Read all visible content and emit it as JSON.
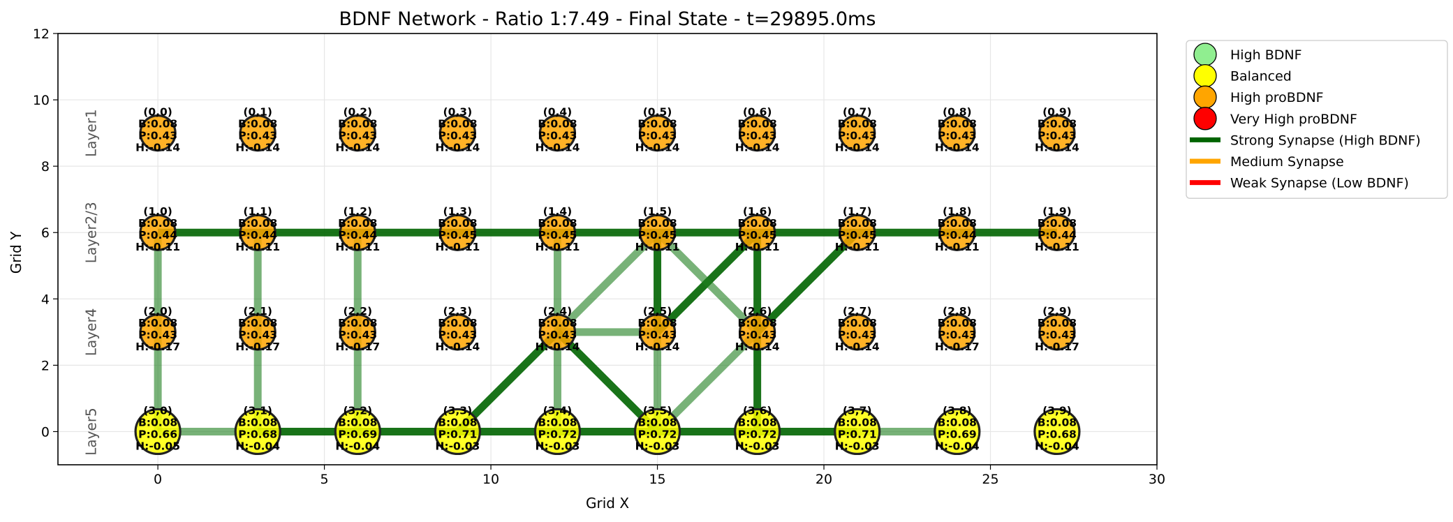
{
  "chart_data": {
    "type": "scatter",
    "title": "BDNF Network - Ratio 1:7.49 - Final State - t=29895.0ms",
    "xlabel": "Grid X",
    "ylabel": "Grid Y",
    "xlim": [
      -3,
      30
    ],
    "ylim": [
      -1,
      12
    ],
    "xticks": [
      0,
      5,
      10,
      15,
      20,
      25,
      30
    ],
    "yticks": [
      0,
      2,
      4,
      6,
      8,
      10,
      12
    ],
    "grid": true,
    "legend_position": "outside-right-top",
    "colors": {
      "high_bdnf": "#90ee90",
      "balanced": "#ffff00",
      "high_probdnf": "#ffa500",
      "very_high_probdnf": "#ff0000",
      "strong_synapse": "#006400",
      "medium_synapse": "#ffa500",
      "weak_synapse": "#ff0000"
    },
    "legend": [
      {
        "label": "High BDNF",
        "kind": "marker",
        "color": "#90ee90"
      },
      {
        "label": "Balanced",
        "kind": "marker",
        "color": "#ffff00"
      },
      {
        "label": "High proBDNF",
        "kind": "marker",
        "color": "#ffa500"
      },
      {
        "label": "Very High proBDNF",
        "kind": "marker",
        "color": "#ff0000"
      },
      {
        "label": "Strong Synapse (High BDNF)",
        "kind": "line",
        "color": "#006400"
      },
      {
        "label": "Medium Synapse",
        "kind": "line",
        "color": "#ffa500"
      },
      {
        "label": "Weak Synapse (Low BDNF)",
        "kind": "line",
        "color": "#ff0000"
      }
    ],
    "layers": [
      {
        "label": "Layer1",
        "y": 9
      },
      {
        "label": "Layer2/3",
        "y": 6
      },
      {
        "label": "Layer4",
        "y": 3
      },
      {
        "label": "Layer5",
        "y": 0
      }
    ],
    "columns_x": [
      0,
      3,
      6,
      9,
      12,
      15,
      18,
      21,
      24,
      27
    ],
    "neurons": [
      {
        "id": "(0,0)",
        "x": 0,
        "y": 9,
        "state": "high_probdnf",
        "size": "small",
        "B": "B:0.08",
        "P": "P:0.43",
        "H": "H:-0.14"
      },
      {
        "id": "(0,1)",
        "x": 3,
        "y": 9,
        "state": "high_probdnf",
        "size": "small",
        "B": "B:0.08",
        "P": "P:0.43",
        "H": "H:-0.14"
      },
      {
        "id": "(0,2)",
        "x": 6,
        "y": 9,
        "state": "high_probdnf",
        "size": "small",
        "B": "B:0.08",
        "P": "P:0.43",
        "H": "H:-0.14"
      },
      {
        "id": "(0,3)",
        "x": 9,
        "y": 9,
        "state": "high_probdnf",
        "size": "small",
        "B": "B:0.08",
        "P": "P:0.43",
        "H": "H:-0.14"
      },
      {
        "id": "(0,4)",
        "x": 12,
        "y": 9,
        "state": "high_probdnf",
        "size": "small",
        "B": "B:0.08",
        "P": "P:0.43",
        "H": "H:-0.14"
      },
      {
        "id": "(0,5)",
        "x": 15,
        "y": 9,
        "state": "high_probdnf",
        "size": "small",
        "B": "B:0.08",
        "P": "P:0.43",
        "H": "H:-0.14"
      },
      {
        "id": "(0,6)",
        "x": 18,
        "y": 9,
        "state": "high_probdnf",
        "size": "small",
        "B": "B:0.08",
        "P": "P:0.43",
        "H": "H:-0.14"
      },
      {
        "id": "(0,7)",
        "x": 21,
        "y": 9,
        "state": "high_probdnf",
        "size": "small",
        "B": "B:0.08",
        "P": "P:0.43",
        "H": "H:-0.14"
      },
      {
        "id": "(0,8)",
        "x": 24,
        "y": 9,
        "state": "high_probdnf",
        "size": "small",
        "B": "B:0.08",
        "P": "P:0.43",
        "H": "H:-0.14"
      },
      {
        "id": "(0,9)",
        "x": 27,
        "y": 9,
        "state": "high_probdnf",
        "size": "small",
        "B": "B:0.08",
        "P": "P:0.43",
        "H": "H:-0.14"
      },
      {
        "id": "(1,0)",
        "x": 0,
        "y": 6,
        "state": "high_probdnf",
        "size": "small",
        "B": "B:0.08",
        "P": "P:0.44",
        "H": "H:-0.11"
      },
      {
        "id": "(1,1)",
        "x": 3,
        "y": 6,
        "state": "high_probdnf",
        "size": "small",
        "B": "B:0.08",
        "P": "P:0.44",
        "H": "H:-0.11"
      },
      {
        "id": "(1,2)",
        "x": 6,
        "y": 6,
        "state": "high_probdnf",
        "size": "small",
        "B": "B:0.08",
        "P": "P:0.44",
        "H": "H:-0.11"
      },
      {
        "id": "(1,3)",
        "x": 9,
        "y": 6,
        "state": "high_probdnf",
        "size": "small",
        "B": "B:0.08",
        "P": "P:0.45",
        "H": "H:-0.11"
      },
      {
        "id": "(1,4)",
        "x": 12,
        "y": 6,
        "state": "high_probdnf",
        "size": "small",
        "B": "B:0.08",
        "P": "P:0.45",
        "H": "H:-0.11"
      },
      {
        "id": "(1,5)",
        "x": 15,
        "y": 6,
        "state": "high_probdnf",
        "size": "small",
        "B": "B:0.08",
        "P": "P:0.45",
        "H": "H:-0.11"
      },
      {
        "id": "(1,6)",
        "x": 18,
        "y": 6,
        "state": "high_probdnf",
        "size": "small",
        "B": "B:0.08",
        "P": "P:0.45",
        "H": "H:-0.11"
      },
      {
        "id": "(1,7)",
        "x": 21,
        "y": 6,
        "state": "high_probdnf",
        "size": "small",
        "B": "B:0.08",
        "P": "P:0.45",
        "H": "H:-0.11"
      },
      {
        "id": "(1,8)",
        "x": 24,
        "y": 6,
        "state": "high_probdnf",
        "size": "small",
        "B": "B:0.08",
        "P": "P:0.44",
        "H": "H:-0.11"
      },
      {
        "id": "(1,9)",
        "x": 27,
        "y": 6,
        "state": "high_probdnf",
        "size": "small",
        "B": "B:0.08",
        "P": "P:0.44",
        "H": "H:-0.11"
      },
      {
        "id": "(2,0)",
        "x": 0,
        "y": 3,
        "state": "high_probdnf",
        "size": "small",
        "B": "B:0.08",
        "P": "P:0.43",
        "H": "H:-0.17"
      },
      {
        "id": "(2,1)",
        "x": 3,
        "y": 3,
        "state": "high_probdnf",
        "size": "small",
        "B": "B:0.08",
        "P": "P:0.43",
        "H": "H:-0.17"
      },
      {
        "id": "(2,2)",
        "x": 6,
        "y": 3,
        "state": "high_probdnf",
        "size": "small",
        "B": "B:0.08",
        "P": "P:0.43",
        "H": "H:-0.17"
      },
      {
        "id": "(2,3)",
        "x": 9,
        "y": 3,
        "state": "high_probdnf",
        "size": "small",
        "B": "B:0.08",
        "P": "P:0.43",
        "H": "H:-0.14"
      },
      {
        "id": "(2,4)",
        "x": 12,
        "y": 3,
        "state": "high_probdnf",
        "size": "small",
        "B": "B:0.08",
        "P": "P:0.43",
        "H": "H:-0.14"
      },
      {
        "id": "(2,5)",
        "x": 15,
        "y": 3,
        "state": "high_probdnf",
        "size": "small",
        "B": "B:0.08",
        "P": "P:0.43",
        "H": "H:-0.14"
      },
      {
        "id": "(2,6)",
        "x": 18,
        "y": 3,
        "state": "high_probdnf",
        "size": "small",
        "B": "B:0.08",
        "P": "P:0.43",
        "H": "H:-0.14"
      },
      {
        "id": "(2,7)",
        "x": 21,
        "y": 3,
        "state": "high_probdnf",
        "size": "small",
        "B": "B:0.08",
        "P": "P:0.43",
        "H": "H:-0.14"
      },
      {
        "id": "(2,8)",
        "x": 24,
        "y": 3,
        "state": "high_probdnf",
        "size": "small",
        "B": "B:0.08",
        "P": "P:0.43",
        "H": "H:-0.17"
      },
      {
        "id": "(2,9)",
        "x": 27,
        "y": 3,
        "state": "high_probdnf",
        "size": "small",
        "B": "B:0.08",
        "P": "P:0.43",
        "H": "H:-0.17"
      },
      {
        "id": "(3,0)",
        "x": 0,
        "y": 0,
        "state": "balanced",
        "size": "large",
        "B": "B:0.08",
        "P": "P:0.66",
        "H": "H:-0.05"
      },
      {
        "id": "(3,1)",
        "x": 3,
        "y": 0,
        "state": "balanced",
        "size": "large",
        "B": "B:0.08",
        "P": "P:0.68",
        "H": "H:-0.04"
      },
      {
        "id": "(3,2)",
        "x": 6,
        "y": 0,
        "state": "balanced",
        "size": "large",
        "B": "B:0.08",
        "P": "P:0.69",
        "H": "H:-0.04"
      },
      {
        "id": "(3,3)",
        "x": 9,
        "y": 0,
        "state": "balanced",
        "size": "large",
        "B": "B:0.08",
        "P": "P:0.71",
        "H": "H:-0.03"
      },
      {
        "id": "(3,4)",
        "x": 12,
        "y": 0,
        "state": "balanced",
        "size": "large",
        "B": "B:0.08",
        "P": "P:0.72",
        "H": "H:-0.03"
      },
      {
        "id": "(3,5)",
        "x": 15,
        "y": 0,
        "state": "balanced",
        "size": "large",
        "B": "B:0.08",
        "P": "P:0.72",
        "H": "H:-0.03"
      },
      {
        "id": "(3,6)",
        "x": 18,
        "y": 0,
        "state": "balanced",
        "size": "large",
        "B": "B:0.08",
        "P": "P:0.72",
        "H": "H:-0.03"
      },
      {
        "id": "(3,7)",
        "x": 21,
        "y": 0,
        "state": "balanced",
        "size": "large",
        "B": "B:0.08",
        "P": "P:0.71",
        "H": "H:-0.03"
      },
      {
        "id": "(3,8)",
        "x": 24,
        "y": 0,
        "state": "balanced",
        "size": "large",
        "B": "B:0.08",
        "P": "P:0.69",
        "H": "H:-0.04"
      },
      {
        "id": "(3,9)",
        "x": 27,
        "y": 0,
        "state": "balanced",
        "size": "large",
        "B": "B:0.08",
        "P": "P:0.68",
        "H": "H:-0.04"
      }
    ],
    "synapses": [
      {
        "from": [
          0,
          6
        ],
        "to": [
          3,
          6
        ],
        "strength": "strong"
      },
      {
        "from": [
          3,
          6
        ],
        "to": [
          6,
          6
        ],
        "strength": "strong"
      },
      {
        "from": [
          6,
          6
        ],
        "to": [
          9,
          6
        ],
        "strength": "strong"
      },
      {
        "from": [
          9,
          6
        ],
        "to": [
          12,
          6
        ],
        "strength": "strong"
      },
      {
        "from": [
          12,
          6
        ],
        "to": [
          15,
          6
        ],
        "strength": "strong"
      },
      {
        "from": [
          15,
          6
        ],
        "to": [
          18,
          6
        ],
        "strength": "strong"
      },
      {
        "from": [
          18,
          6
        ],
        "to": [
          21,
          6
        ],
        "strength": "strong"
      },
      {
        "from": [
          21,
          6
        ],
        "to": [
          24,
          6
        ],
        "strength": "strong"
      },
      {
        "from": [
          24,
          6
        ],
        "to": [
          27,
          6
        ],
        "strength": "strong"
      },
      {
        "from": [
          0,
          6
        ],
        "to": [
          0,
          3
        ],
        "strength": "medium-strong"
      },
      {
        "from": [
          0,
          3
        ],
        "to": [
          0,
          0
        ],
        "strength": "medium-strong"
      },
      {
        "from": [
          3,
          6
        ],
        "to": [
          3,
          3
        ],
        "strength": "medium-strong"
      },
      {
        "from": [
          3,
          3
        ],
        "to": [
          3,
          0
        ],
        "strength": "medium-strong"
      },
      {
        "from": [
          6,
          6
        ],
        "to": [
          6,
          3
        ],
        "strength": "medium-strong"
      },
      {
        "from": [
          6,
          3
        ],
        "to": [
          6,
          0
        ],
        "strength": "medium-strong"
      },
      {
        "from": [
          0,
          0
        ],
        "to": [
          3,
          0
        ],
        "strength": "medium-strong"
      },
      {
        "from": [
          3,
          0
        ],
        "to": [
          6,
          0
        ],
        "strength": "strong"
      },
      {
        "from": [
          6,
          0
        ],
        "to": [
          9,
          0
        ],
        "strength": "strong"
      },
      {
        "from": [
          9,
          0
        ],
        "to": [
          12,
          0
        ],
        "strength": "strong"
      },
      {
        "from": [
          12,
          0
        ],
        "to": [
          15,
          0
        ],
        "strength": "strong"
      },
      {
        "from": [
          15,
          0
        ],
        "to": [
          18,
          0
        ],
        "strength": "strong"
      },
      {
        "from": [
          18,
          0
        ],
        "to": [
          21,
          0
        ],
        "strength": "strong"
      },
      {
        "from": [
          21,
          0
        ],
        "to": [
          24,
          0
        ],
        "strength": "medium-strong"
      },
      {
        "from": [
          12,
          6
        ],
        "to": [
          12,
          3
        ],
        "strength": "medium-strong"
      },
      {
        "from": [
          12,
          3
        ],
        "to": [
          12,
          0
        ],
        "strength": "medium-strong"
      },
      {
        "from": [
          12,
          3
        ],
        "to": [
          15,
          6
        ],
        "strength": "medium-strong"
      },
      {
        "from": [
          12,
          3
        ],
        "to": [
          15,
          3
        ],
        "strength": "medium-strong"
      },
      {
        "from": [
          9,
          0
        ],
        "to": [
          12,
          3
        ],
        "strength": "strong"
      },
      {
        "from": [
          12,
          3
        ],
        "to": [
          15,
          0
        ],
        "strength": "strong"
      },
      {
        "from": [
          15,
          6
        ],
        "to": [
          15,
          3
        ],
        "strength": "strong"
      },
      {
        "from": [
          15,
          3
        ],
        "to": [
          15,
          0
        ],
        "strength": "medium-strong"
      },
      {
        "from": [
          15,
          3
        ],
        "to": [
          18,
          6
        ],
        "strength": "strong"
      },
      {
        "from": [
          15,
          6
        ],
        "to": [
          18,
          3
        ],
        "strength": "medium-strong"
      },
      {
        "from": [
          18,
          6
        ],
        "to": [
          18,
          3
        ],
        "strength": "strong"
      },
      {
        "from": [
          18,
          3
        ],
        "to": [
          18,
          0
        ],
        "strength": "strong"
      },
      {
        "from": [
          18,
          3
        ],
        "to": [
          21,
          6
        ],
        "strength": "strong"
      },
      {
        "from": [
          15,
          0
        ],
        "to": [
          18,
          3
        ],
        "strength": "medium-strong"
      }
    ]
  }
}
